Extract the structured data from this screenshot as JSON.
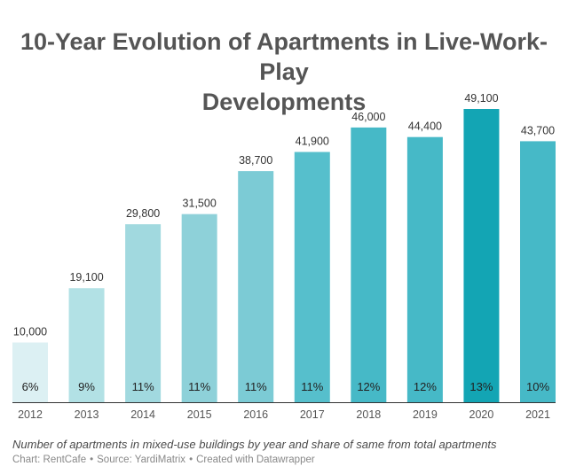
{
  "title_line1": "10-Year Evolution of Apartments in Live-Work-Play",
  "title_line2": "Developments",
  "caption": "Number of apartments in mixed-use buildings by year and share of same from total apartments",
  "credit": {
    "chart_label": "Chart: RentCafe",
    "source_label": "Source: YardiMatrix",
    "tool_label": "Created with Datawrapper",
    "separator": "•"
  },
  "chart_data": {
    "type": "bar",
    "title": "10-Year Evolution of Apartments in Live-Work-Play Developments",
    "xlabel": "",
    "ylabel": "",
    "ylim": [
      0,
      49100
    ],
    "categories": [
      "2012",
      "2013",
      "2014",
      "2015",
      "2016",
      "2017",
      "2018",
      "2019",
      "2020",
      "2021"
    ],
    "values": [
      10000,
      19100,
      29800,
      31500,
      38700,
      41900,
      46000,
      44400,
      49100,
      43700
    ],
    "value_labels": [
      "10,000",
      "19,100",
      "29,800",
      "31,500",
      "38,700",
      "41,900",
      "46,000",
      "44,400",
      "49,100",
      "43,700"
    ],
    "share_labels": [
      "6%",
      "9%",
      "11%",
      "11%",
      "11%",
      "11%",
      "12%",
      "12%",
      "13%",
      "10%"
    ],
    "bar_colors": [
      "#dcf0f3",
      "#b2e1e5",
      "#a1d9df",
      "#8ed1d9",
      "#7ccbd5",
      "#56bfcc",
      "#46b9c7",
      "#46b9c7",
      "#13a5b4",
      "#46b9c7"
    ],
    "grid": false
  }
}
